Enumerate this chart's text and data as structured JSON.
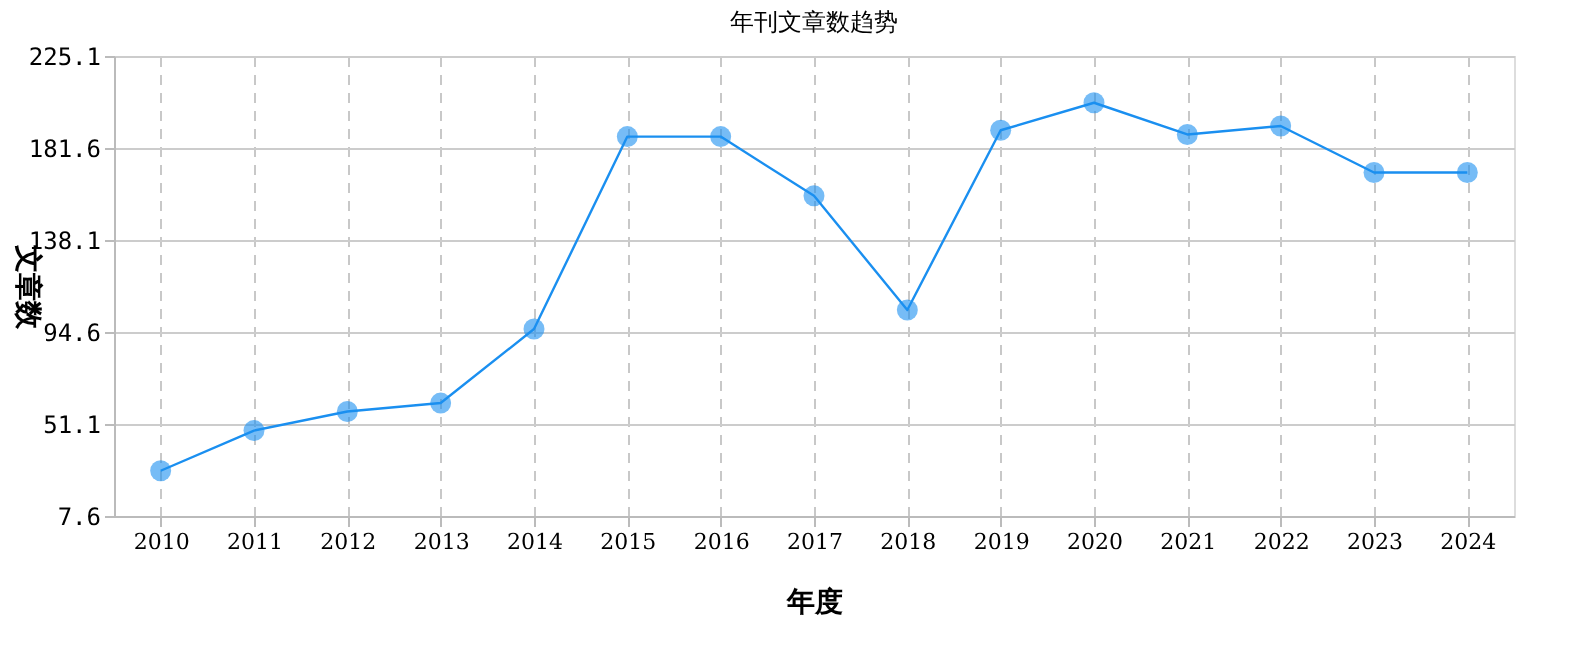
{
  "chart_data": {
    "type": "line",
    "title": "年刊文章数趋势",
    "xlabel": "年度",
    "ylabel": "文章数",
    "categories": [
      "2010",
      "2011",
      "2012",
      "2013",
      "2014",
      "2015",
      "2016",
      "2017",
      "2018",
      "2019",
      "2020",
      "2021",
      "2022",
      "2023",
      "2024"
    ],
    "series": [
      {
        "color": "#1a8ff0",
        "values": [
          29,
          48,
          57,
          61,
          96,
          187,
          187,
          159,
          105,
          190,
          203,
          188,
          192,
          170,
          170
        ]
      }
    ],
    "ylim": [
      7.6,
      225.1
    ],
    "yticks": [
      7.6,
      51.1,
      94.6,
      138.1,
      181.6,
      225.1
    ],
    "grid": true,
    "marker": "circle",
    "line_style": "solid"
  }
}
